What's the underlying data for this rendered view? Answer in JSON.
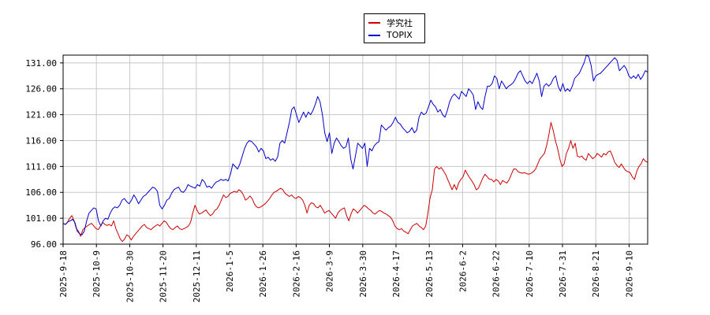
{
  "chart_data": {
    "type": "line",
    "title": "",
    "xlabel": "",
    "ylabel": "",
    "x_tick_labels": [
      "2025-9-18",
      "2025-10-9",
      "2025-10-30",
      "2025-11-20",
      "2025-12-11",
      "2026-1-5",
      "2026-1-26",
      "2026-2-16",
      "2026-3-9",
      "2026-3-30",
      "2026-4-17",
      "2026-5-13",
      "2026-6-2",
      "2026-6-22",
      "2026-7-10",
      "2026-7-31",
      "2026-8-21",
      "2026-9-10"
    ],
    "y_tick_labels": [
      "96.00",
      "101.00",
      "106.00",
      "111.00",
      "116.00",
      "121.00",
      "126.00",
      "131.00"
    ],
    "ylim": [
      96,
      132.5
    ],
    "grid": true,
    "legend_placement": "top-center",
    "series": [
      {
        "name": "学究社",
        "color": "#cc0000",
        "values": [
          100,
          99.8,
          100.2,
          101,
          101.5,
          100.5,
          99,
          98.5,
          97.5,
          98.8,
          99.2,
          99.5,
          99.8,
          100,
          99.5,
          99,
          98.8,
          99.5,
          100.2,
          99.8,
          99.6,
          99.8,
          99.5,
          100.5,
          99,
          98,
          97,
          96.5,
          97,
          97.8,
          97.5,
          96.8,
          97.5,
          98,
          98.5,
          99,
          99.5,
          99.8,
          99.2,
          99,
          98.8,
          99.2,
          99.5,
          99.8,
          99.5,
          100,
          100.5,
          100.2,
          99.5,
          99,
          98.8,
          99.2,
          99.5,
          99,
          98.8,
          99,
          99.2,
          99.5,
          100.2,
          102,
          103.5,
          102.5,
          101.8,
          102,
          102.3,
          102.6,
          102,
          101.5,
          101.8,
          102.5,
          102.8,
          103.5,
          104.5,
          105.5,
          105,
          105.2,
          105.8,
          106,
          106.2,
          106,
          106.5,
          106.2,
          105.5,
          104.5,
          104.8,
          105.3,
          104.8,
          103.8,
          103.2,
          103,
          103.2,
          103.5,
          103.8,
          104.3,
          104.8,
          105.5,
          106,
          106.2,
          106.5,
          106.8,
          106.5,
          105.8,
          105.5,
          105.2,
          105.5,
          105,
          104.8,
          105.2,
          105,
          104.5,
          103.5,
          102,
          103.5,
          104,
          103.8,
          103.2,
          103,
          103.5,
          102.8,
          102,
          102.3,
          102.5,
          102,
          101.5,
          101,
          102,
          102.5,
          102.8,
          103,
          101.5,
          100.5,
          101.8,
          102.8,
          102.5,
          102,
          102.5,
          103,
          103.5,
          103.2,
          102.8,
          102.5,
          102,
          101.8,
          102.2,
          102.5,
          102.3,
          102,
          101.8,
          101.5,
          101.2,
          100.5,
          99.5,
          99,
          98.8,
          99,
          98.5,
          98.3,
          98,
          98.8,
          99.5,
          99.8,
          100,
          99.5,
          99.2,
          98.8,
          99.5,
          102,
          105,
          106.5,
          110.5,
          111,
          110.5,
          110.8,
          110.2,
          109.5,
          108.5,
          107.5,
          106.5,
          107.5,
          106.5,
          107.8,
          108.5,
          109,
          110.3,
          109.5,
          108.8,
          108.2,
          107.5,
          106.5,
          106.8,
          107.8,
          108.8,
          109.5,
          109,
          108.5,
          108.5,
          108,
          108.5,
          108.2,
          107.5,
          108.3,
          108,
          107.8,
          108.5,
          109.5,
          110.5,
          110.5,
          110,
          109.8,
          109.7,
          109.8,
          109.6,
          109.5,
          109.7,
          110,
          110.5,
          111.5,
          112.5,
          113,
          113.5,
          115,
          117,
          119.5,
          118,
          116,
          114.5,
          112.5,
          111,
          111.5,
          113.5,
          114.5,
          116,
          114.5,
          115.5,
          113,
          112.8,
          113,
          112.5,
          112.2,
          113.5,
          113,
          112.5,
          112.8,
          113.5,
          113.2,
          112.8,
          113.5,
          113.2,
          113.8,
          114,
          113,
          111.8,
          111.2,
          110.8,
          111.5,
          110.8,
          110.2,
          110,
          109.8,
          109,
          108.5,
          110,
          111,
          111.5,
          112.5,
          112,
          111.8
        ]
      },
      {
        "name": "TOPIX",
        "color": "#0000cc",
        "values": [
          100,
          99.8,
          100.3,
          100.5,
          100.8,
          100.2,
          98.5,
          98,
          97.8,
          98.5,
          100.5,
          102,
          102.5,
          103,
          102.8,
          100.5,
          99.5,
          100.5,
          101,
          100.8,
          102,
          102.8,
          103.2,
          103,
          103.5,
          104.5,
          104.8,
          104.2,
          103.8,
          104.5,
          105.5,
          104.8,
          103.8,
          104.5,
          105.2,
          105.5,
          106,
          106.5,
          107,
          106.8,
          106.2,
          103.5,
          102.8,
          103.5,
          104.5,
          104.8,
          105.8,
          106.5,
          106.8,
          107,
          106.2,
          106,
          106.5,
          107.5,
          107.2,
          107,
          106.8,
          107.5,
          107.2,
          108.5,
          108,
          107,
          107.2,
          106.8,
          107.5,
          108,
          108.2,
          108.5,
          108.3,
          108.5,
          108.2,
          109.5,
          111.5,
          111,
          110.5,
          111.5,
          113,
          114.5,
          115.5,
          116,
          115.8,
          115.3,
          114.8,
          113.8,
          114.5,
          114,
          112.5,
          112.8,
          112.2,
          112.5,
          112,
          112.8,
          115.5,
          116,
          115.5,
          117.5,
          119.5,
          122,
          122.5,
          121,
          119.5,
          120.5,
          121.5,
          120.5,
          121.5,
          121,
          121.8,
          123,
          124.5,
          123.5,
          121,
          117.5,
          115.8,
          117.5,
          113.5,
          115.5,
          116.5,
          115.8,
          115,
          114.5,
          114.8,
          116.5,
          112.5,
          110.5,
          113,
          115.5,
          115,
          114.5,
          115.5,
          111,
          114.5,
          114,
          115,
          115.5,
          115.8,
          119,
          118.5,
          118,
          118.5,
          118.8,
          119.5,
          120.5,
          119.5,
          119.2,
          118.5,
          118,
          117.5,
          117.8,
          118.5,
          117.5,
          118,
          120.5,
          121.5,
          121,
          121.3,
          122.5,
          123.8,
          123,
          122.5,
          121.5,
          122,
          121,
          120.5,
          121.8,
          123.5,
          124.5,
          125,
          124.5,
          124,
          125.5,
          125,
          124.5,
          126,
          125.5,
          124.8,
          122,
          123.5,
          122.5,
          122,
          124.5,
          126.5,
          126.5,
          127,
          128.5,
          128,
          126,
          127.5,
          126.8,
          126,
          126.5,
          126.8,
          127.2,
          128,
          129,
          129.5,
          128.5,
          127.5,
          127,
          127.5,
          127,
          128,
          129,
          127.5,
          124.5,
          126.5,
          127,
          126.5,
          127,
          128,
          128.5,
          126.5,
          125.5,
          127,
          125.5,
          126,
          125.5,
          126.5,
          128,
          128.5,
          129,
          130,
          131,
          132.5,
          132.2,
          130.5,
          127.5,
          128.5,
          128.8,
          129,
          129.5,
          130,
          130.5,
          131,
          131.5,
          132,
          131.5,
          129.5,
          130,
          130.5,
          129.8,
          128.5,
          128,
          128.5,
          128,
          128.8,
          127.8,
          128.5,
          129.5,
          129.2
        ]
      }
    ]
  }
}
